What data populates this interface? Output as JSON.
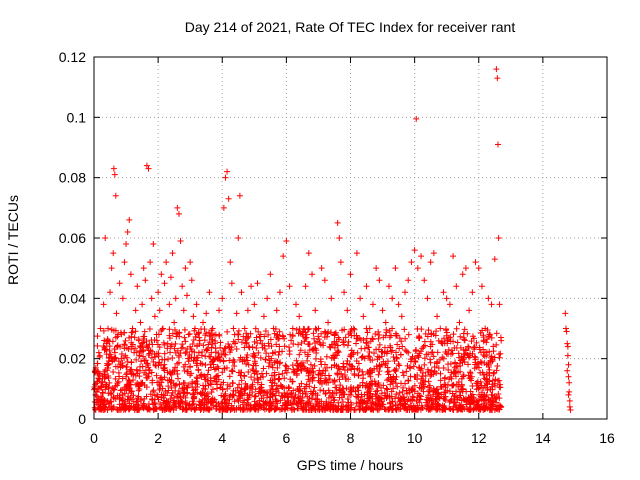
{
  "chart_data": {
    "type": "scatter",
    "title": "Day 214 of 2021, Rate Of TEC Index for receiver rant",
    "xlabel": "GPS time / hours",
    "ylabel": "ROTI / TECUs",
    "xlim": [
      0,
      16
    ],
    "ylim": [
      0,
      0.12
    ],
    "x_ticks": [
      0,
      2,
      4,
      6,
      8,
      10,
      12,
      14,
      16
    ],
    "x_tick_labels": [
      "0",
      "2",
      "4",
      "6",
      "8",
      "10",
      "12",
      "14",
      "16"
    ],
    "y_ticks": [
      0,
      0.02,
      0.04,
      0.06,
      0.08,
      0.1,
      0.12
    ],
    "y_tick_labels": [
      "0",
      "0.02",
      "0.04",
      "0.06",
      "0.08",
      "0.1",
      "0.12"
    ],
    "grid": true,
    "marker": "+",
    "color": "#ff0000",
    "series": [
      {
        "name": "ROTI",
        "points": [
          [
            0.05,
            0.008
          ],
          [
            0.1,
            0.015
          ],
          [
            0.15,
            0.022
          ],
          [
            0.2,
            0.03
          ],
          [
            0.25,
            0.012
          ],
          [
            0.3,
            0.038
          ],
          [
            0.35,
            0.06
          ],
          [
            0.4,
            0.025
          ],
          [
            0.45,
            0.018
          ],
          [
            0.5,
            0.042
          ],
          [
            0.55,
            0.05
          ],
          [
            0.6,
            0.055
          ],
          [
            0.62,
            0.083
          ],
          [
            0.65,
            0.081
          ],
          [
            0.68,
            0.074
          ],
          [
            0.7,
            0.035
          ],
          [
            0.75,
            0.028
          ],
          [
            0.8,
            0.045
          ],
          [
            0.85,
            0.02
          ],
          [
            0.9,
            0.04
          ],
          [
            0.95,
            0.052
          ],
          [
            1.0,
            0.058
          ],
          [
            1.05,
            0.062
          ],
          [
            1.1,
            0.066
          ],
          [
            1.15,
            0.048
          ],
          [
            1.2,
            0.03
          ],
          [
            1.25,
            0.022
          ],
          [
            1.3,
            0.036
          ],
          [
            1.35,
            0.044
          ],
          [
            1.4,
            0.026
          ],
          [
            1.45,
            0.032
          ],
          [
            1.5,
            0.038
          ],
          [
            1.55,
            0.05
          ],
          [
            1.6,
            0.046
          ],
          [
            1.65,
            0.084
          ],
          [
            1.7,
            0.083
          ],
          [
            1.75,
            0.052
          ],
          [
            1.8,
            0.04
          ],
          [
            1.85,
            0.058
          ],
          [
            1.9,
            0.034
          ],
          [
            1.95,
            0.028
          ],
          [
            2.0,
            0.042
          ],
          [
            2.05,
            0.036
          ],
          [
            2.1,
            0.048
          ],
          [
            2.15,
            0.03
          ],
          [
            2.2,
            0.045
          ],
          [
            2.25,
            0.052
          ],
          [
            2.3,
            0.025
          ],
          [
            2.35,
            0.038
          ],
          [
            2.4,
            0.047
          ],
          [
            2.45,
            0.055
          ],
          [
            2.5,
            0.032
          ],
          [
            2.55,
            0.04
          ],
          [
            2.6,
            0.07
          ],
          [
            2.65,
            0.068
          ],
          [
            2.7,
            0.059
          ],
          [
            2.75,
            0.044
          ],
          [
            2.8,
            0.036
          ],
          [
            2.85,
            0.05
          ],
          [
            2.9,
            0.041
          ],
          [
            2.95,
            0.028
          ],
          [
            3.0,
            0.052
          ],
          [
            3.05,
            0.046
          ],
          [
            3.1,
            0.034
          ],
          [
            3.15,
            0.03
          ],
          [
            3.2,
            0.038
          ],
          [
            3.3,
            0.026
          ],
          [
            3.4,
            0.032
          ],
          [
            3.5,
            0.035
          ],
          [
            3.6,
            0.042
          ],
          [
            3.7,
            0.03
          ],
          [
            3.8,
            0.028
          ],
          [
            3.9,
            0.036
          ],
          [
            4.0,
            0.04
          ],
          [
            4.05,
            0.07
          ],
          [
            4.1,
            0.08
          ],
          [
            4.15,
            0.082
          ],
          [
            4.2,
            0.073
          ],
          [
            4.25,
            0.052
          ],
          [
            4.3,
            0.045
          ],
          [
            4.35,
            0.03
          ],
          [
            4.4,
            0.025
          ],
          [
            4.45,
            0.035
          ],
          [
            4.5,
            0.06
          ],
          [
            4.55,
            0.074
          ],
          [
            4.6,
            0.042
          ],
          [
            4.7,
            0.03
          ],
          [
            4.8,
            0.036
          ],
          [
            4.9,
            0.044
          ],
          [
            5.0,
            0.038
          ],
          [
            5.1,
            0.045
          ],
          [
            5.2,
            0.028
          ],
          [
            5.3,
            0.034
          ],
          [
            5.4,
            0.04
          ],
          [
            5.5,
            0.048
          ],
          [
            5.6,
            0.03
          ],
          [
            5.7,
            0.036
          ],
          [
            5.8,
            0.042
          ],
          [
            5.9,
            0.054
          ],
          [
            6.0,
            0.059
          ],
          [
            6.1,
            0.044
          ],
          [
            6.2,
            0.03
          ],
          [
            6.3,
            0.038
          ],
          [
            6.4,
            0.034
          ],
          [
            6.5,
            0.028
          ],
          [
            6.6,
            0.044
          ],
          [
            6.7,
            0.055
          ],
          [
            6.8,
            0.048
          ],
          [
            6.9,
            0.036
          ],
          [
            7.0,
            0.03
          ],
          [
            7.1,
            0.05
          ],
          [
            7.2,
            0.046
          ],
          [
            7.3,
            0.032
          ],
          [
            7.4,
            0.04
          ],
          [
            7.5,
            0.028
          ],
          [
            7.6,
            0.065
          ],
          [
            7.65,
            0.06
          ],
          [
            7.7,
            0.052
          ],
          [
            7.8,
            0.042
          ],
          [
            7.9,
            0.036
          ],
          [
            8.0,
            0.048
          ],
          [
            8.1,
            0.03
          ],
          [
            8.2,
            0.055
          ],
          [
            8.3,
            0.04
          ],
          [
            8.4,
            0.034
          ],
          [
            8.5,
            0.044
          ],
          [
            8.6,
            0.03
          ],
          [
            8.7,
            0.038
          ],
          [
            8.8,
            0.05
          ],
          [
            8.9,
            0.046
          ],
          [
            9.0,
            0.036
          ],
          [
            9.1,
            0.032
          ],
          [
            9.2,
            0.044
          ],
          [
            9.3,
            0.04
          ],
          [
            9.4,
            0.05
          ],
          [
            9.5,
            0.038
          ],
          [
            9.6,
            0.034
          ],
          [
            9.7,
            0.042
          ],
          [
            9.8,
            0.046
          ],
          [
            9.9,
            0.052
          ],
          [
            10.0,
            0.056
          ],
          [
            10.05,
            0.0995
          ],
          [
            10.1,
            0.05
          ],
          [
            10.2,
            0.054
          ],
          [
            10.3,
            0.046
          ],
          [
            10.4,
            0.04
          ],
          [
            10.5,
            0.052
          ],
          [
            10.6,
            0.055
          ],
          [
            10.7,
            0.034
          ],
          [
            10.8,
            0.03
          ],
          [
            10.9,
            0.042
          ],
          [
            11.0,
            0.04
          ],
          [
            11.1,
            0.038
          ],
          [
            11.2,
            0.054
          ],
          [
            11.3,
            0.044
          ],
          [
            11.4,
            0.032
          ],
          [
            11.5,
            0.048
          ],
          [
            11.6,
            0.05
          ],
          [
            11.7,
            0.036
          ],
          [
            11.8,
            0.042
          ],
          [
            11.9,
            0.052
          ],
          [
            12.0,
            0.05
          ],
          [
            12.1,
            0.044
          ],
          [
            12.2,
            0.03
          ],
          [
            12.3,
            0.04
          ],
          [
            12.4,
            0.038
          ],
          [
            12.5,
            0.053
          ],
          [
            12.55,
            0.116
          ],
          [
            12.58,
            0.113
          ],
          [
            12.6,
            0.091
          ],
          [
            12.62,
            0.06
          ],
          [
            12.65,
            0.038
          ],
          [
            12.7,
            0.026
          ],
          [
            14.7,
            0.035
          ],
          [
            14.72,
            0.03
          ],
          [
            14.74,
            0.029
          ],
          [
            14.76,
            0.025
          ],
          [
            14.78,
            0.024
          ],
          [
            14.8,
            0.018
          ],
          [
            14.8,
            0.014
          ],
          [
            14.82,
            0.012
          ],
          [
            14.82,
            0.009
          ],
          [
            14.84,
            0.006
          ],
          [
            14.84,
            0.004
          ],
          [
            14.86,
            0.003
          ],
          [
            14.78,
            0.021
          ],
          [
            14.76,
            0.016
          ],
          [
            14.8,
            0.008
          ]
        ],
        "dense_band": {
          "description": "dense cluster of points across the observation window",
          "x_range": [
            0,
            12.7
          ],
          "y_range": [
            0.003,
            0.03
          ]
        }
      }
    ]
  }
}
